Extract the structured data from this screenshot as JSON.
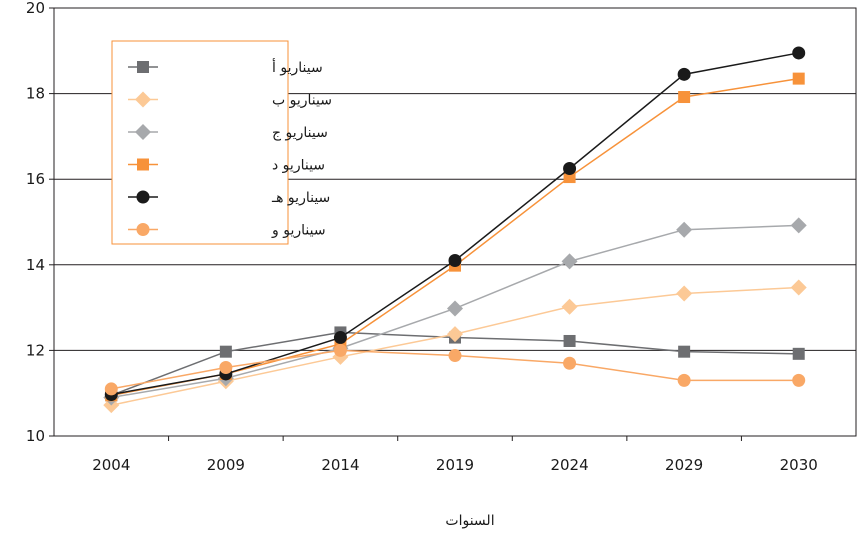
{
  "chart_data": {
    "type": "line",
    "title": "",
    "xlabel": "السنوات",
    "ylabel": "",
    "categories": [
      "2004",
      "2009",
      "2014",
      "2019",
      "2024",
      "2029",
      "2030"
    ],
    "ylim": [
      10,
      20
    ],
    "yticks": [
      "10",
      "12",
      "14",
      "16",
      "18",
      "20"
    ],
    "grid": "horizontal",
    "legend_position": "top-left",
    "series": [
      {
        "name": "سيناريو أ",
        "color": "#6d6e71",
        "marker": "square",
        "values": [
          10.95,
          11.97,
          12.42,
          12.3,
          12.22,
          11.97,
          11.92
        ]
      },
      {
        "name": "سيناريو ب",
        "color": "#fcc996",
        "marker": "diamond",
        "values": [
          10.72,
          11.28,
          11.85,
          12.38,
          13.02,
          13.33,
          13.47
        ]
      },
      {
        "name": "سيناريو ج",
        "color": "#a7a9ac",
        "marker": "diamond",
        "values": [
          10.9,
          11.35,
          12.05,
          12.98,
          14.08,
          14.82,
          14.92
        ]
      },
      {
        "name": "سيناريو د",
        "color": "#f7923a",
        "marker": "square",
        "values": [
          10.95,
          11.45,
          12.15,
          13.98,
          16.05,
          17.92,
          18.35
        ]
      },
      {
        "name": "سيناريو هـ",
        "color": "#1a1a1a",
        "marker": "circle",
        "values": [
          10.97,
          11.45,
          12.3,
          14.1,
          16.25,
          18.45,
          18.95
        ]
      },
      {
        "name": "سيناريو و",
        "color": "#f9a866",
        "marker": "circle",
        "values": [
          11.1,
          11.6,
          12.0,
          11.88,
          11.7,
          11.3,
          11.3
        ]
      }
    ]
  }
}
